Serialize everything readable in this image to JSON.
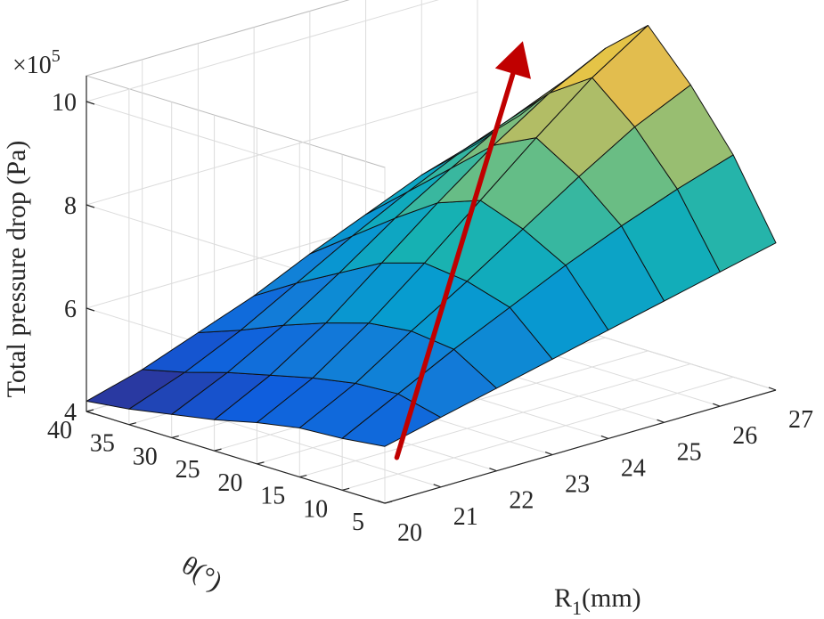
{
  "chart_data": {
    "type": "surface3d",
    "zlabel": "Total pressure drop (Pa)",
    "zexponent_label": "×10",
    "zexponent_power": "5",
    "xlabel_main": "R",
    "xlabel_sub": "1",
    "xlabel_rest": "(mm)",
    "ylabel": "θ(°)",
    "x": [
      20,
      21,
      22,
      23,
      24,
      25,
      26,
      27
    ],
    "y": [
      5,
      10,
      15,
      20,
      25,
      30,
      35,
      40
    ],
    "xticks": [
      "20",
      "21",
      "22",
      "23",
      "24",
      "25",
      "26",
      "27"
    ],
    "yticks": [
      "5",
      "10",
      "15",
      "20",
      "25",
      "30",
      "35",
      "40"
    ],
    "zticks": [
      "4",
      "6",
      "8",
      "10"
    ],
    "zlim": [
      4,
      10.5
    ],
    "z_units_scale": 100000,
    "z": [
      [
        5.1,
        5.35,
        5.6,
        5.85,
        6.1,
        6.35,
        6.6,
        6.85
      ],
      [
        5.0,
        5.55,
        6.1,
        6.6,
        7.1,
        7.55,
        7.95,
        8.3
      ],
      [
        4.95,
        5.5,
        6.2,
        6.85,
        7.55,
        8.25,
        8.9,
        9.4
      ],
      [
        4.8,
        5.35,
        6.1,
        6.95,
        7.85,
        8.75,
        9.6,
        10.3
      ],
      [
        4.6,
        5.15,
        5.85,
        6.7,
        7.55,
        8.35,
        9.05,
        9.6
      ],
      [
        4.45,
        4.95,
        5.55,
        6.25,
        7.0,
        7.65,
        8.25,
        8.7
      ],
      [
        4.3,
        4.7,
        5.2,
        5.8,
        6.4,
        6.95,
        7.45,
        7.8
      ],
      [
        4.2,
        4.5,
        4.9,
        5.3,
        5.8,
        6.25,
        6.7,
        7.0
      ]
    ],
    "colormap": "parula",
    "arrow_color": "#c00000",
    "grid": true
  }
}
